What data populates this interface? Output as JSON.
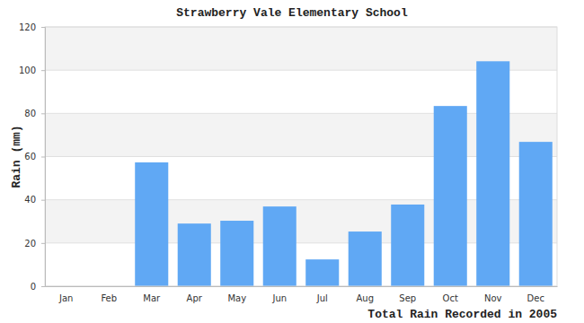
{
  "chart_data": {
    "type": "bar",
    "title": "Strawberry Vale Elementary School",
    "xlabel": "Total Rain Recorded in 2005",
    "ylabel": "Rain (mm)",
    "categories": [
      "Jan",
      "Feb",
      "Mar",
      "Apr",
      "May",
      "Jun",
      "Jul",
      "Aug",
      "Sep",
      "Oct",
      "Nov",
      "Dec"
    ],
    "values": [
      0,
      0,
      57.3,
      29.0,
      30.3,
      36.9,
      12.4,
      25.3,
      37.8,
      83.4,
      104.1,
      66.8
    ],
    "color": "#60a8f4",
    "ylim": [
      0,
      120
    ],
    "yticks": [
      0,
      20,
      40,
      60,
      80,
      100,
      120
    ],
    "grid": true
  }
}
